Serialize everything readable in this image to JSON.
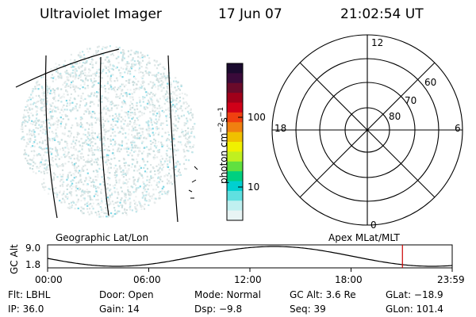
{
  "header": {
    "instrument": "Ultraviolet Imager",
    "date": "17 Jun 07",
    "time": "21:02:54 UT"
  },
  "colorbar": {
    "unit_label": "photon cm",
    "unit_exp_1": "−2",
    "unit_mid": "s",
    "unit_exp_2": "−1",
    "ticks": [
      "100",
      "10"
    ],
    "colors": [
      "#1a0a2e",
      "#3a0a3a",
      "#6a0a2a",
      "#a0001a",
      "#d00018",
      "#f04010",
      "#f08010",
      "#f0c000",
      "#f0f000",
      "#c0f020",
      "#60e040",
      "#00d080",
      "#00d0d0",
      "#60e0e0",
      "#c0f0f0",
      "#e8f4f4"
    ]
  },
  "polar_plot": {
    "mlt_labels": [
      "12",
      "18",
      "6",
      "0"
    ],
    "lat_labels": [
      "60",
      "70",
      "80"
    ]
  },
  "labels": {
    "geo": "Geographic Lat/Lon",
    "apex": "Apex MLat/MLT"
  },
  "timeline": {
    "ylabel": "GC Alt",
    "yticks": [
      "9.0",
      "1.8"
    ],
    "xticks": [
      "00:00",
      "06:00",
      "12:00",
      "18:00",
      "23:59"
    ],
    "current_time_fraction": 0.877,
    "marker_color": "#cc0000"
  },
  "info": {
    "flt": "Flt: LBHL",
    "door": "Door: Open",
    "mode": "Mode: Normal",
    "gcalt": "GC Alt: 3.6 Re",
    "glat": "GLat: −18.9",
    "ip": "IP: 36.0",
    "gain": "Gain: 14",
    "dsp": "Dsp:    −9.8",
    "seq": "Seq: 39",
    "glon": "GLon: 101.4"
  }
}
